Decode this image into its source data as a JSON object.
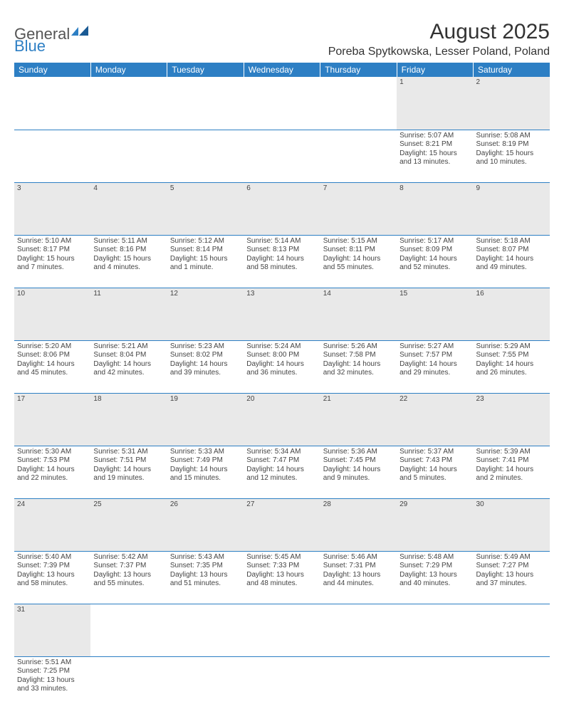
{
  "logo": {
    "text1": "General",
    "text2": "Blue"
  },
  "title": "August 2025",
  "location": "Poreba Spytkowska, Lesser Poland, Poland",
  "colors": {
    "header_bg": "#2d7fc4",
    "header_fg": "#ffffff",
    "daynum_bg": "#e9e9e9",
    "rule": "#2d7fc4",
    "text": "#444444"
  },
  "day_headers": [
    "Sunday",
    "Monday",
    "Tuesday",
    "Wednesday",
    "Thursday",
    "Friday",
    "Saturday"
  ],
  "weeks": [
    {
      "nums": [
        "",
        "",
        "",
        "",
        "",
        "1",
        "2"
      ],
      "cells": [
        null,
        null,
        null,
        null,
        null,
        {
          "sr": "Sunrise: 5:07 AM",
          "ss": "Sunset: 8:21 PM",
          "d1": "Daylight: 15 hours",
          "d2": "and 13 minutes."
        },
        {
          "sr": "Sunrise: 5:08 AM",
          "ss": "Sunset: 8:19 PM",
          "d1": "Daylight: 15 hours",
          "d2": "and 10 minutes."
        }
      ]
    },
    {
      "nums": [
        "3",
        "4",
        "5",
        "6",
        "7",
        "8",
        "9"
      ],
      "cells": [
        {
          "sr": "Sunrise: 5:10 AM",
          "ss": "Sunset: 8:17 PM",
          "d1": "Daylight: 15 hours",
          "d2": "and 7 minutes."
        },
        {
          "sr": "Sunrise: 5:11 AM",
          "ss": "Sunset: 8:16 PM",
          "d1": "Daylight: 15 hours",
          "d2": "and 4 minutes."
        },
        {
          "sr": "Sunrise: 5:12 AM",
          "ss": "Sunset: 8:14 PM",
          "d1": "Daylight: 15 hours",
          "d2": "and 1 minute."
        },
        {
          "sr": "Sunrise: 5:14 AM",
          "ss": "Sunset: 8:13 PM",
          "d1": "Daylight: 14 hours",
          "d2": "and 58 minutes."
        },
        {
          "sr": "Sunrise: 5:15 AM",
          "ss": "Sunset: 8:11 PM",
          "d1": "Daylight: 14 hours",
          "d2": "and 55 minutes."
        },
        {
          "sr": "Sunrise: 5:17 AM",
          "ss": "Sunset: 8:09 PM",
          "d1": "Daylight: 14 hours",
          "d2": "and 52 minutes."
        },
        {
          "sr": "Sunrise: 5:18 AM",
          "ss": "Sunset: 8:07 PM",
          "d1": "Daylight: 14 hours",
          "d2": "and 49 minutes."
        }
      ]
    },
    {
      "nums": [
        "10",
        "11",
        "12",
        "13",
        "14",
        "15",
        "16"
      ],
      "cells": [
        {
          "sr": "Sunrise: 5:20 AM",
          "ss": "Sunset: 8:06 PM",
          "d1": "Daylight: 14 hours",
          "d2": "and 45 minutes."
        },
        {
          "sr": "Sunrise: 5:21 AM",
          "ss": "Sunset: 8:04 PM",
          "d1": "Daylight: 14 hours",
          "d2": "and 42 minutes."
        },
        {
          "sr": "Sunrise: 5:23 AM",
          "ss": "Sunset: 8:02 PM",
          "d1": "Daylight: 14 hours",
          "d2": "and 39 minutes."
        },
        {
          "sr": "Sunrise: 5:24 AM",
          "ss": "Sunset: 8:00 PM",
          "d1": "Daylight: 14 hours",
          "d2": "and 36 minutes."
        },
        {
          "sr": "Sunrise: 5:26 AM",
          "ss": "Sunset: 7:58 PM",
          "d1": "Daylight: 14 hours",
          "d2": "and 32 minutes."
        },
        {
          "sr": "Sunrise: 5:27 AM",
          "ss": "Sunset: 7:57 PM",
          "d1": "Daylight: 14 hours",
          "d2": "and 29 minutes."
        },
        {
          "sr": "Sunrise: 5:29 AM",
          "ss": "Sunset: 7:55 PM",
          "d1": "Daylight: 14 hours",
          "d2": "and 26 minutes."
        }
      ]
    },
    {
      "nums": [
        "17",
        "18",
        "19",
        "20",
        "21",
        "22",
        "23"
      ],
      "cells": [
        {
          "sr": "Sunrise: 5:30 AM",
          "ss": "Sunset: 7:53 PM",
          "d1": "Daylight: 14 hours",
          "d2": "and 22 minutes."
        },
        {
          "sr": "Sunrise: 5:31 AM",
          "ss": "Sunset: 7:51 PM",
          "d1": "Daylight: 14 hours",
          "d2": "and 19 minutes."
        },
        {
          "sr": "Sunrise: 5:33 AM",
          "ss": "Sunset: 7:49 PM",
          "d1": "Daylight: 14 hours",
          "d2": "and 15 minutes."
        },
        {
          "sr": "Sunrise: 5:34 AM",
          "ss": "Sunset: 7:47 PM",
          "d1": "Daylight: 14 hours",
          "d2": "and 12 minutes."
        },
        {
          "sr": "Sunrise: 5:36 AM",
          "ss": "Sunset: 7:45 PM",
          "d1": "Daylight: 14 hours",
          "d2": "and 9 minutes."
        },
        {
          "sr": "Sunrise: 5:37 AM",
          "ss": "Sunset: 7:43 PM",
          "d1": "Daylight: 14 hours",
          "d2": "and 5 minutes."
        },
        {
          "sr": "Sunrise: 5:39 AM",
          "ss": "Sunset: 7:41 PM",
          "d1": "Daylight: 14 hours",
          "d2": "and 2 minutes."
        }
      ]
    },
    {
      "nums": [
        "24",
        "25",
        "26",
        "27",
        "28",
        "29",
        "30"
      ],
      "cells": [
        {
          "sr": "Sunrise: 5:40 AM",
          "ss": "Sunset: 7:39 PM",
          "d1": "Daylight: 13 hours",
          "d2": "and 58 minutes."
        },
        {
          "sr": "Sunrise: 5:42 AM",
          "ss": "Sunset: 7:37 PM",
          "d1": "Daylight: 13 hours",
          "d2": "and 55 minutes."
        },
        {
          "sr": "Sunrise: 5:43 AM",
          "ss": "Sunset: 7:35 PM",
          "d1": "Daylight: 13 hours",
          "d2": "and 51 minutes."
        },
        {
          "sr": "Sunrise: 5:45 AM",
          "ss": "Sunset: 7:33 PM",
          "d1": "Daylight: 13 hours",
          "d2": "and 48 minutes."
        },
        {
          "sr": "Sunrise: 5:46 AM",
          "ss": "Sunset: 7:31 PM",
          "d1": "Daylight: 13 hours",
          "d2": "and 44 minutes."
        },
        {
          "sr": "Sunrise: 5:48 AM",
          "ss": "Sunset: 7:29 PM",
          "d1": "Daylight: 13 hours",
          "d2": "and 40 minutes."
        },
        {
          "sr": "Sunrise: 5:49 AM",
          "ss": "Sunset: 7:27 PM",
          "d1": "Daylight: 13 hours",
          "d2": "and 37 minutes."
        }
      ]
    },
    {
      "nums": [
        "31",
        "",
        "",
        "",
        "",
        "",
        ""
      ],
      "cells": [
        {
          "sr": "Sunrise: 5:51 AM",
          "ss": "Sunset: 7:25 PM",
          "d1": "Daylight: 13 hours",
          "d2": "and 33 minutes."
        },
        null,
        null,
        null,
        null,
        null,
        null
      ]
    }
  ]
}
